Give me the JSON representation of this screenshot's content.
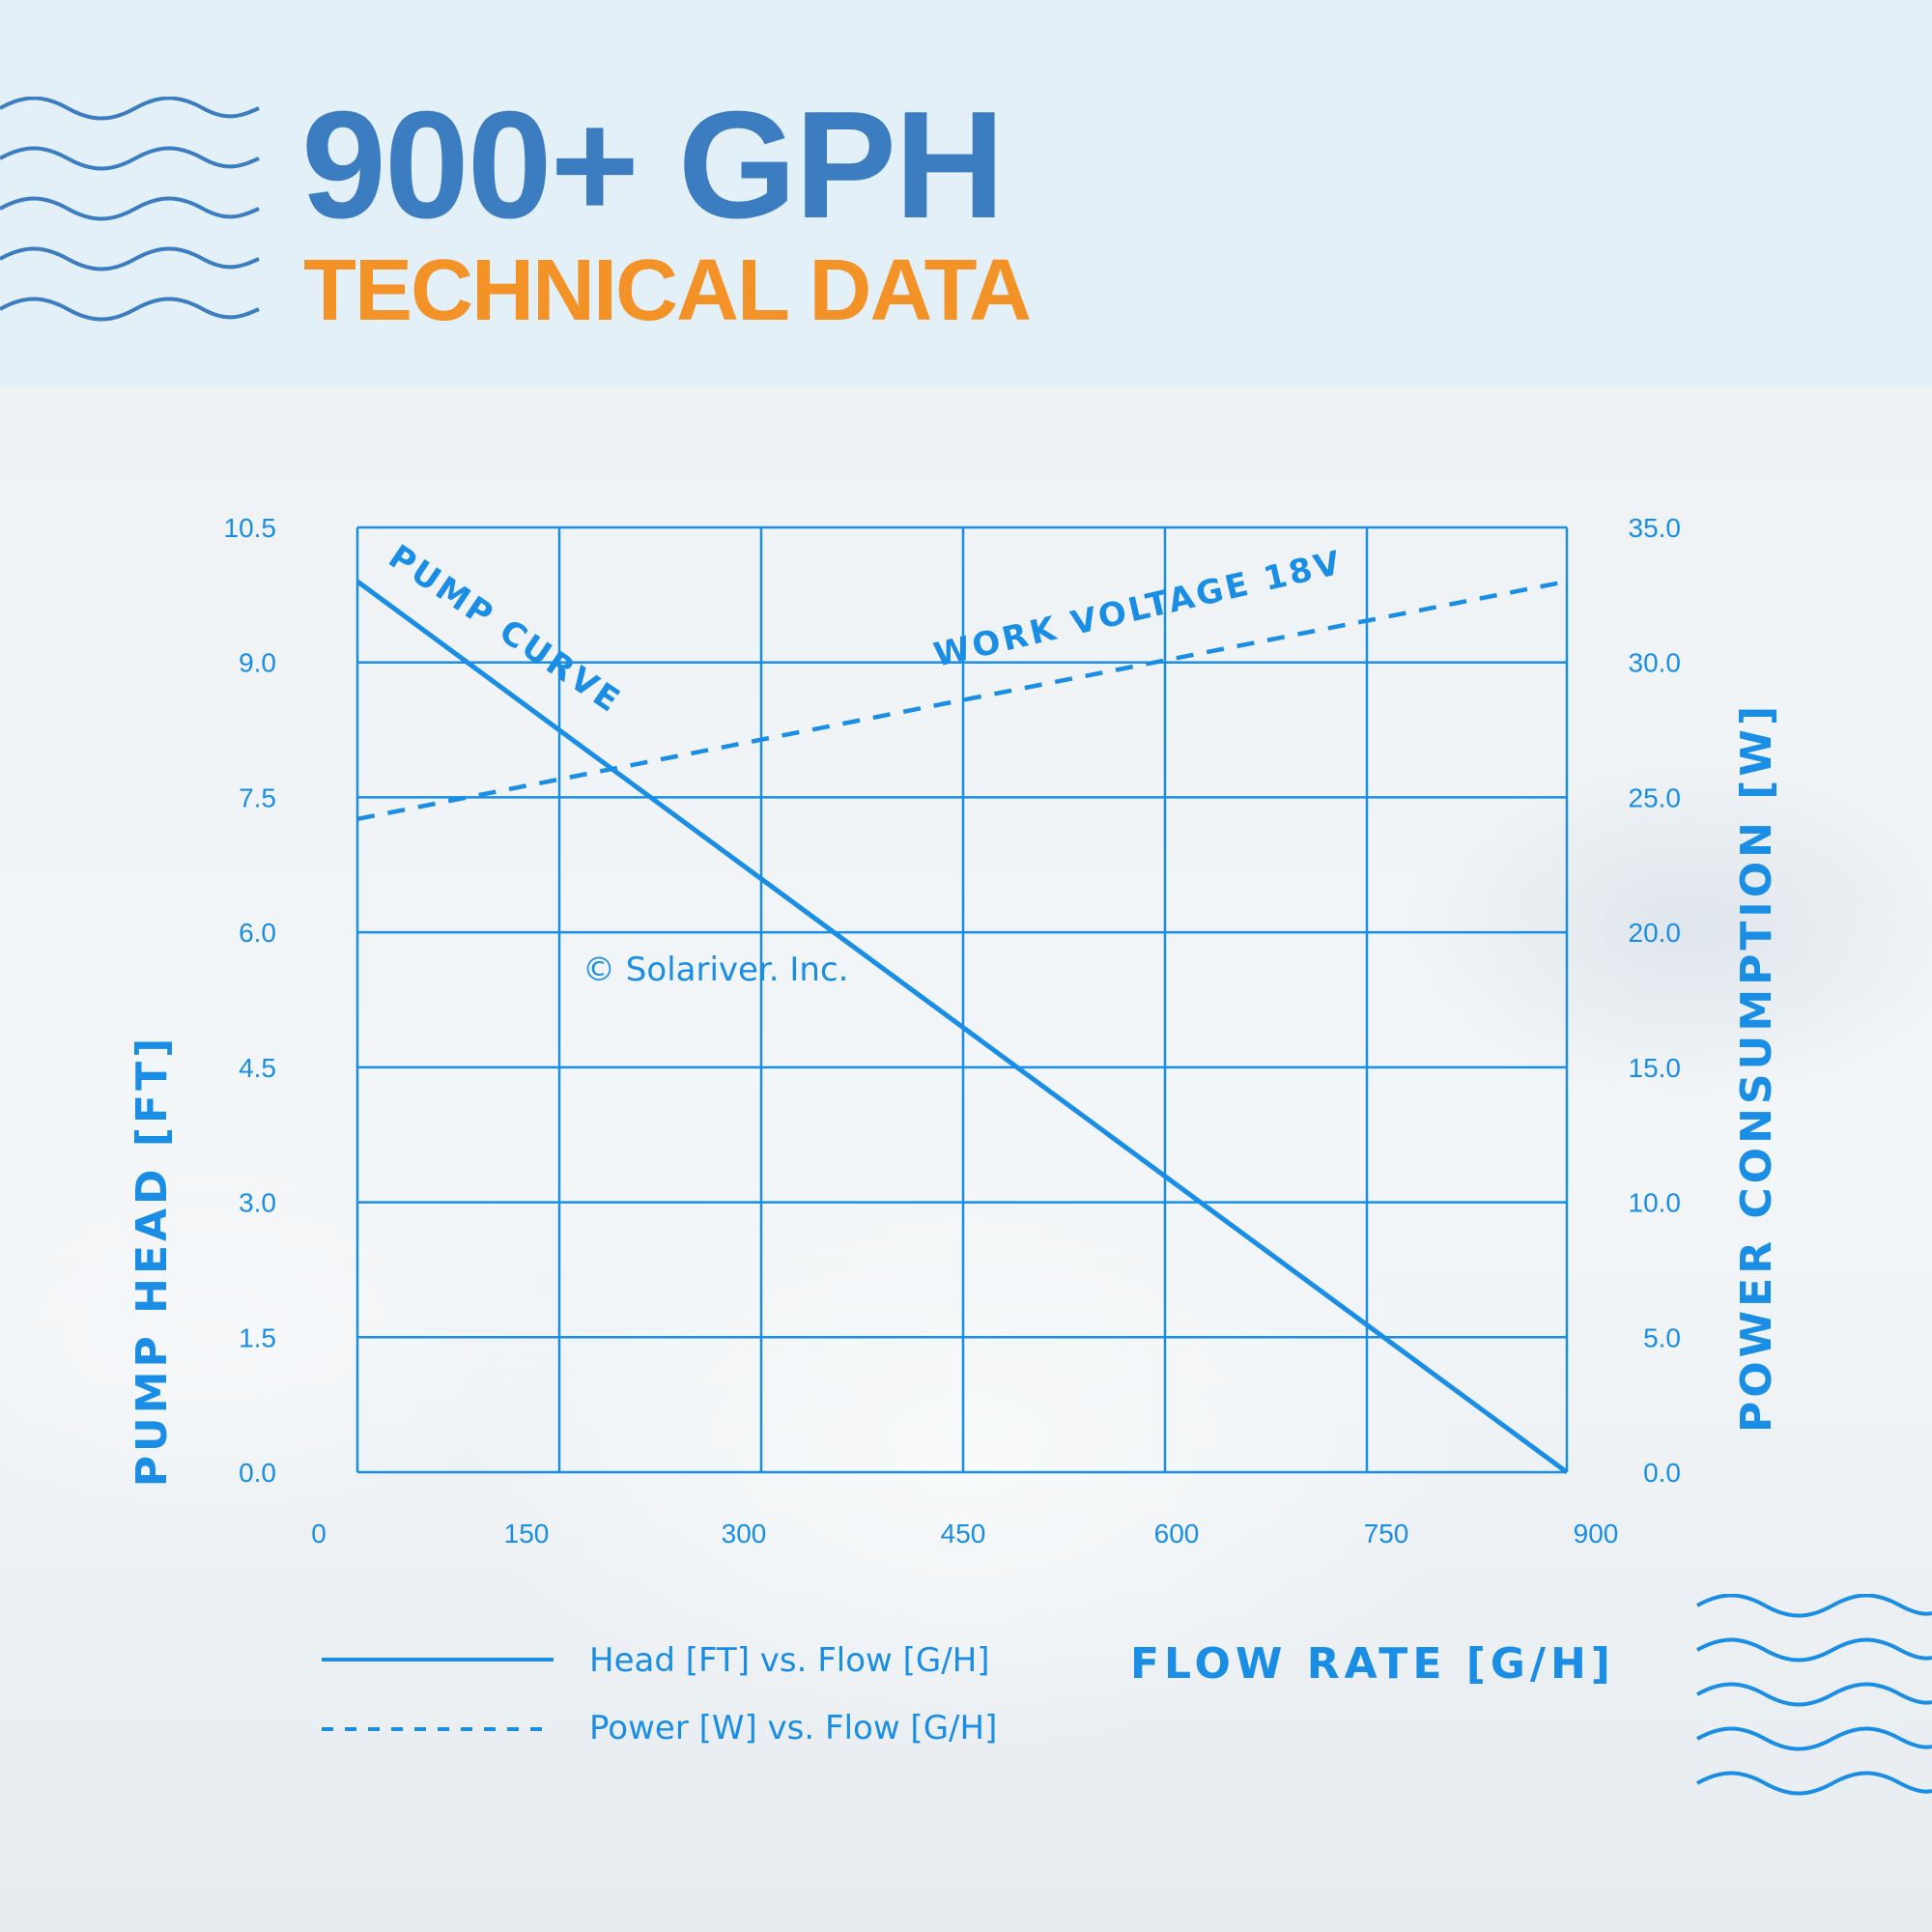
{
  "header": {
    "title": "900+ GPH",
    "subtitle": "TECHNICAL DATA"
  },
  "colors": {
    "title": "#3b7dc0",
    "subtitle": "#f39227",
    "chart": "#1a8de4",
    "header_bg": "#e4f0f7"
  },
  "chart_data": {
    "type": "line",
    "xlabel": "FLOW RATE [G/H]",
    "ylabel": "PUMP HEAD [FT]",
    "y2label": "POWER CONSUMPTION [W]",
    "x_ticks": [
      "0",
      "150",
      "300",
      "450",
      "600",
      "750",
      "900"
    ],
    "y_ticks": [
      "0.0",
      "1.5",
      "3.0",
      "4.5",
      "6.0",
      "7.5",
      "9.0",
      "10.5"
    ],
    "y2_ticks": [
      "0.0",
      "5.0",
      "10.0",
      "15.0",
      "20.0",
      "25.0",
      "30.0",
      "35.0"
    ],
    "xlim": [
      0,
      900
    ],
    "ylim": [
      0,
      10.5
    ],
    "y2lim": [
      0,
      35
    ],
    "grid": true,
    "series": [
      {
        "name": "Head [FT] vs. Flow [G/H]",
        "axis": "left",
        "style": "solid",
        "x": [
          0,
          900
        ],
        "y": [
          9.9,
          0.0
        ]
      },
      {
        "name": "Power [W] vs. Flow [G/H]",
        "axis": "right",
        "style": "dashed",
        "x": [
          0,
          900
        ],
        "y": [
          24.2,
          33.0
        ]
      }
    ],
    "annotations": {
      "pump_curve": "PUMP CURVE",
      "work_voltage": "WORK VOLTAGE 18V",
      "copyright": "© Solariver. Inc."
    },
    "legend": {
      "position": "bottom-left",
      "entries": [
        "Head [FT] vs. Flow [G/H]",
        "Power [W] vs. Flow [G/H]"
      ]
    }
  }
}
